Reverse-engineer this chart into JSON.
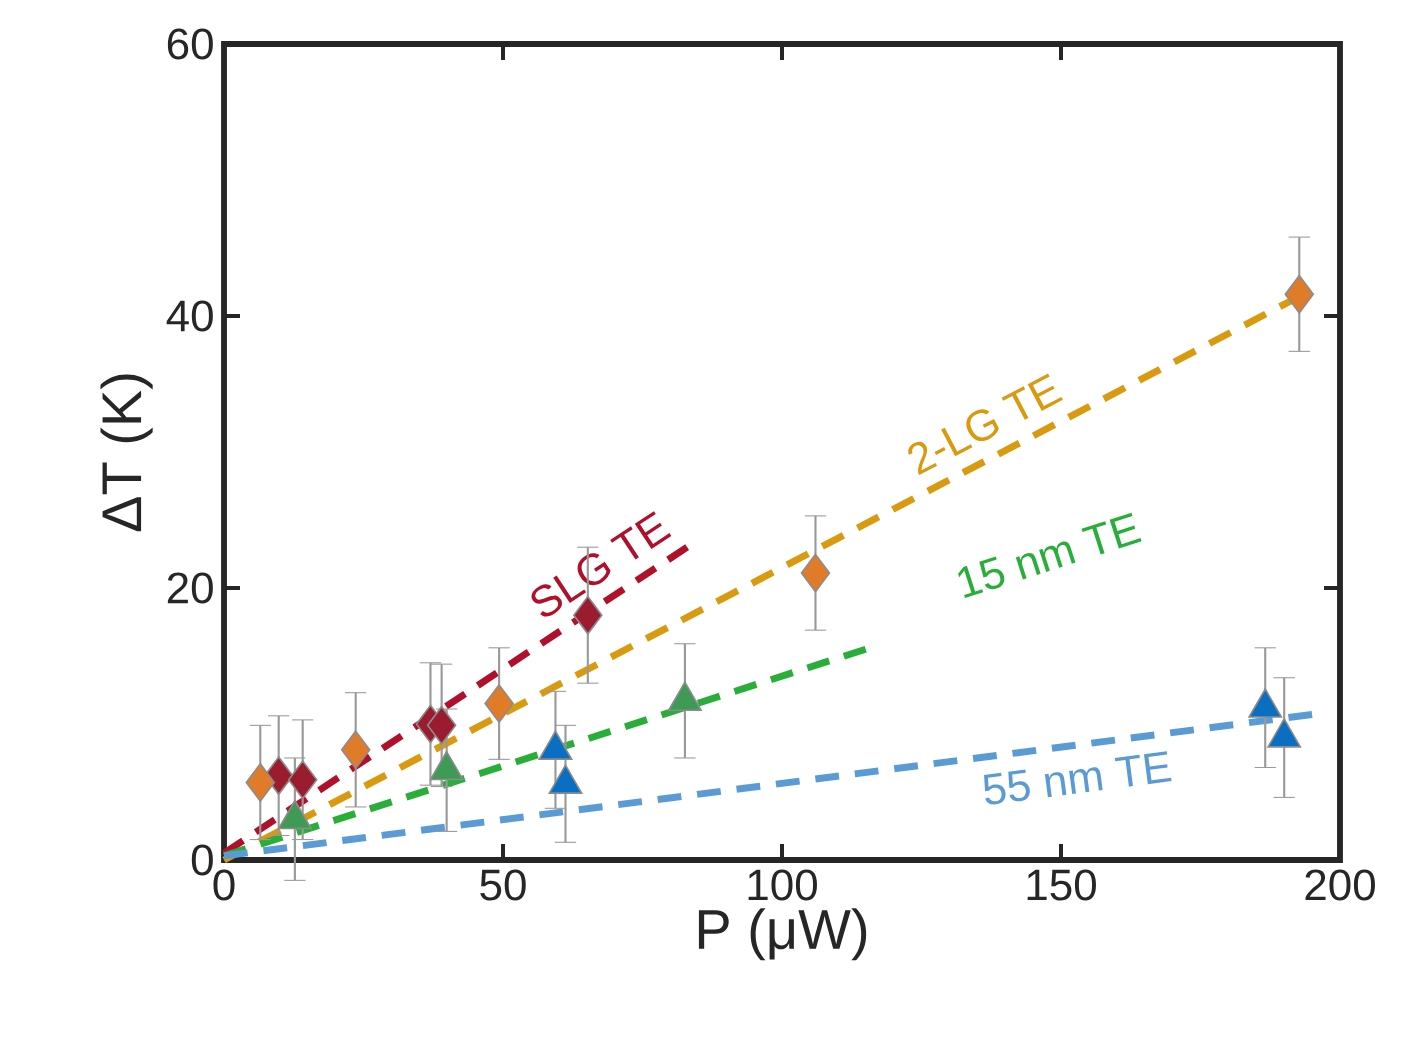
{
  "chart_data": {
    "type": "scatter",
    "xlabel": "P (μW)",
    "ylabel": "ΔT (K)",
    "xlim": [
      0,
      200
    ],
    "ylim": [
      0,
      60
    ],
    "xticks": [
      0,
      50,
      100,
      150,
      200
    ],
    "yticks": [
      0,
      20,
      40,
      60
    ],
    "grid": false,
    "series": [
      {
        "marker": "diamond",
        "color": "#9b1c2e",
        "x": [
          9.8,
          14.1,
          37,
          39,
          65.2
        ],
        "values": [
          6.2,
          5.9,
          10,
          9.9,
          18
        ],
        "errors": [
          4.4,
          4.4,
          4.5,
          4.5,
          5
        ]
      },
      {
        "marker": "diamond",
        "color": "#e07b2a",
        "x": [
          6.5,
          23.6,
          49.3,
          106,
          192.7
        ],
        "values": [
          5.7,
          8.1,
          11.5,
          21.1,
          41.6
        ],
        "errors": [
          4.2,
          4.2,
          4.1,
          4.2,
          4.2
        ]
      },
      {
        "marker": "triangle",
        "color": "#3f9a55",
        "x": [
          12.7,
          39.9,
          82.6
        ],
        "values": [
          3,
          6.6,
          11.7
        ],
        "errors": [
          4.5,
          4.5,
          4.2
        ]
      },
      {
        "marker": "triangle",
        "color": "#0a6fc2",
        "x": [
          59.4,
          61.2,
          186.6,
          190
        ],
        "values": [
          8.1,
          5.6,
          11.2,
          9
        ],
        "errors": [
          4.3,
          4.3,
          4.4,
          4.4
        ]
      },
      {
        "type": "line",
        "line_style": "dashed",
        "name": "SLG TE",
        "color": "#b0102a",
        "x": [
          0,
          83
        ],
        "values": [
          0.5,
          23
        ]
      },
      {
        "type": "line",
        "line_style": "dashed",
        "name": "2-LG TE",
        "color": "#d99a10",
        "x": [
          0,
          193
        ],
        "values": [
          0,
          41.5
        ]
      },
      {
        "type": "line",
        "line_style": "dashed",
        "name": "15 nm TE",
        "color": "#2aae3a",
        "x": [
          0,
          115
        ],
        "values": [
          0.3,
          15.5
        ]
      },
      {
        "type": "line",
        "line_style": "dashed",
        "name": "55 nm TE",
        "color": "#5b9bd5",
        "x": [
          0,
          195
        ],
        "values": [
          0.3,
          10.7
        ]
      }
    ]
  }
}
